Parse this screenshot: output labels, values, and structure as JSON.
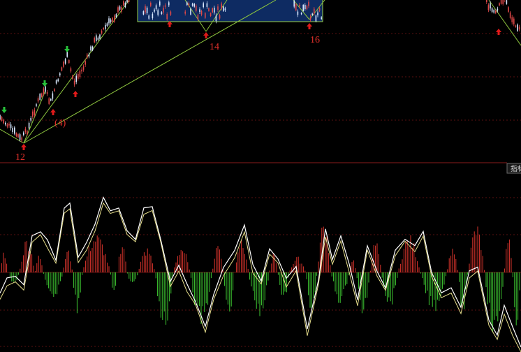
{
  "colors": {
    "background": "#000000",
    "grid": "#5a0f0f",
    "separator": "#8a1c1c",
    "candle_up": "#e04848",
    "candle_down": "#d8e8ff",
    "trend_lines": "#8ec63f",
    "box_fill": "#0e2b62",
    "box_border": "#9ad04a",
    "buy_arrow": "#e01a1a",
    "sell_arrow": "#27c23a",
    "hist_pos": "#d9332c",
    "hist_neg": "#3ec832",
    "indicator_line_1": "#ffffff",
    "indicator_line_2": "#e7df8c",
    "label_text": "#e0302a"
  },
  "wave_labels": [
    {
      "id": "12",
      "text": "12"
    },
    {
      "id": "4",
      "text": "(4)"
    },
    {
      "id": "14",
      "text": "14"
    },
    {
      "id": "16",
      "text": "16"
    }
  ],
  "indicator_tab": {
    "label": "指标"
  },
  "icons": {
    "buy": "red-up-arrow-icon",
    "sell": "green-down-arrow-icon"
  }
}
